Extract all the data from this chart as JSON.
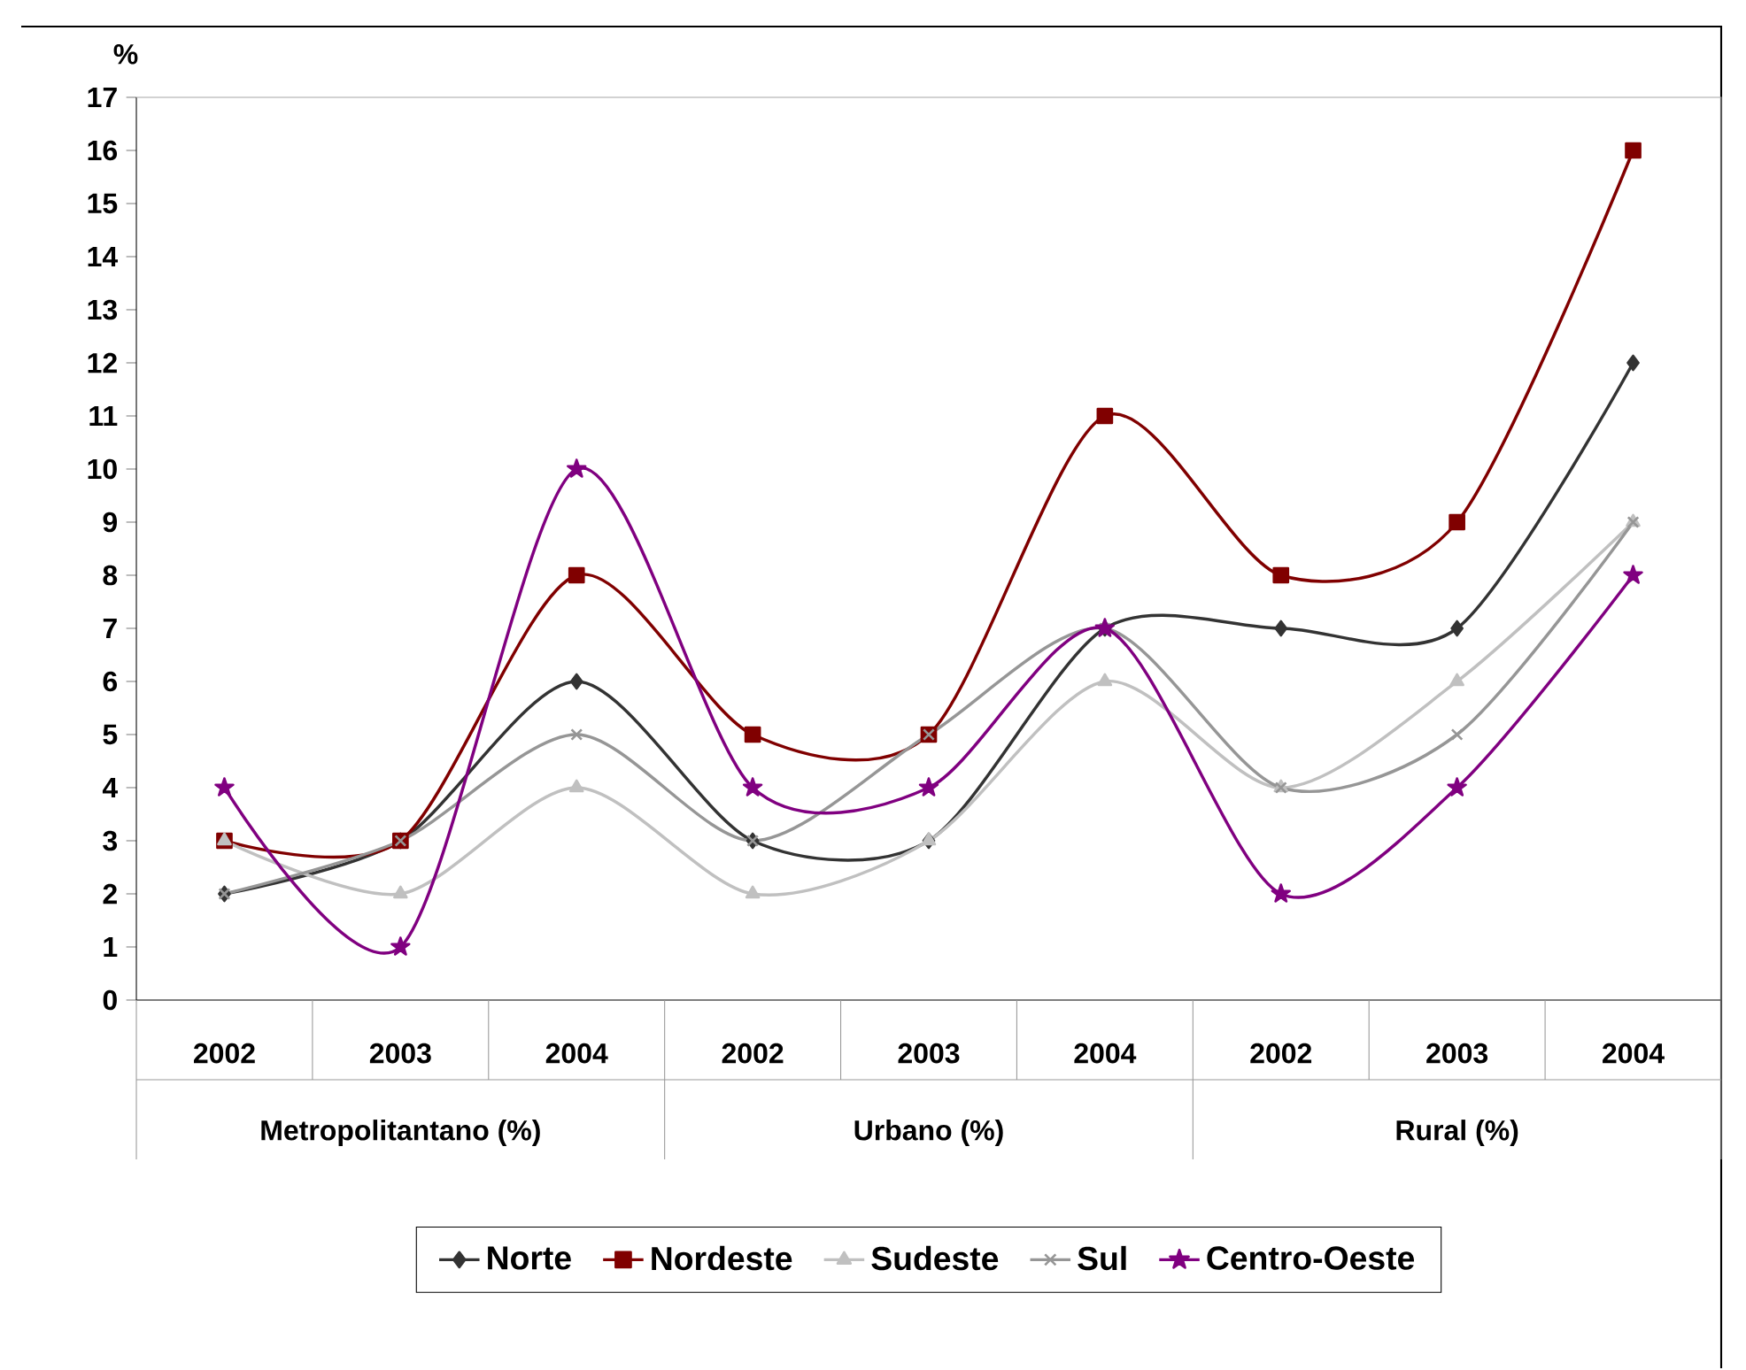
{
  "chart_data": {
    "type": "line",
    "ylabel": "%",
    "categories": [
      "2002",
      "2003",
      "2004",
      "2002",
      "2003",
      "2004",
      "2002",
      "2003",
      "2004"
    ],
    "annotations": [
      "Metropolitantano (%)",
      "Urbano (%)",
      "Rural (%)"
    ],
    "ylim": [
      0,
      17
    ],
    "yticks": [
      0,
      1,
      2,
      3,
      4,
      5,
      6,
      7,
      8,
      9,
      10,
      11,
      12,
      13,
      14,
      15,
      16,
      17
    ],
    "grid": false,
    "legend": "bottom",
    "line_style": "solid",
    "series": [
      {
        "name": "Norte",
        "color": "#333333",
        "marker": "diamond",
        "values": [
          2,
          3,
          6,
          3,
          3,
          7,
          7,
          7,
          12
        ]
      },
      {
        "name": "Nordeste",
        "color": "#800000",
        "marker": "square",
        "values": [
          3,
          3,
          8,
          5,
          5,
          11,
          8,
          9,
          16
        ]
      },
      {
        "name": "Sudeste",
        "color": "#c0c0c0",
        "marker": "triangle",
        "values": [
          3,
          2,
          4,
          2,
          3,
          6,
          4,
          6,
          9
        ]
      },
      {
        "name": "Sul",
        "color": "#969696",
        "marker": "cross",
        "values": [
          2,
          3,
          5,
          3,
          5,
          7,
          4,
          5,
          9
        ]
      },
      {
        "name": "Centro-Oeste",
        "color": "#800080",
        "marker": "star",
        "values": [
          4,
          1,
          10,
          4,
          4,
          7,
          2,
          4,
          8
        ]
      }
    ]
  }
}
